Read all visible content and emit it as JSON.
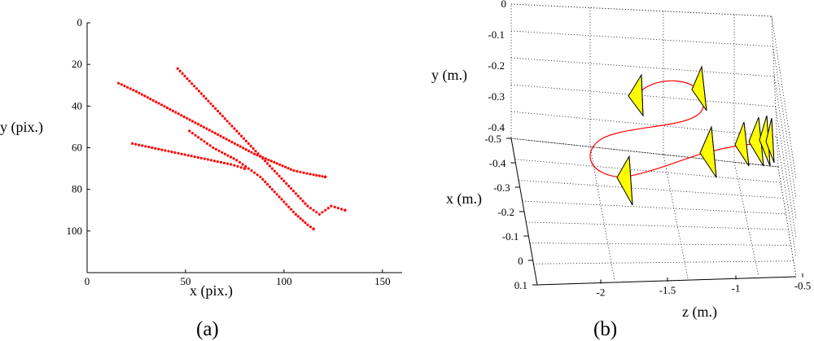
{
  "chart_data": [
    {
      "type": "scatter",
      "xlabel": "x (pix.)",
      "ylabel": "y (pix.)",
      "caption": "(a)",
      "xlim": [
        0,
        160
      ],
      "ylim": [
        0,
        120
      ],
      "y_reversed": true,
      "xticks": [
        0,
        50,
        100,
        150
      ],
      "yticks": [
        0,
        20,
        40,
        60,
        80,
        100
      ],
      "grid": false,
      "marker_color": "#ff0000",
      "series": [
        {
          "values": [
            [
              16,
              29
            ],
            [
              25,
              33
            ],
            [
              35,
              38
            ],
            [
              45,
              43
            ],
            [
              55,
              48
            ],
            [
              65,
              53
            ],
            [
              75,
              58
            ],
            [
              85,
              63
            ],
            [
              95,
              67
            ],
            [
              105,
              71
            ],
            [
              115,
              73
            ],
            [
              121,
              74
            ]
          ]
        },
        {
          "values": [
            [
              46,
              22
            ],
            [
              52,
              28
            ],
            [
              58,
              34
            ],
            [
              64,
              40
            ],
            [
              70,
              46
            ],
            [
              76,
              52
            ],
            [
              82,
              58
            ],
            [
              88,
              64
            ],
            [
              94,
              70
            ],
            [
              100,
              76
            ],
            [
              106,
              82
            ],
            [
              112,
              88
            ],
            [
              118,
              92
            ],
            [
              124,
              88
            ],
            [
              131,
              90
            ]
          ]
        },
        {
          "values": [
            [
              23,
              58
            ],
            [
              33,
              60
            ],
            [
              43,
              62
            ],
            [
              53,
              64
            ],
            [
              63,
              66
            ],
            [
              73,
              68
            ],
            [
              80,
              70
            ]
          ]
        },
        {
          "values": [
            [
              52,
              52
            ],
            [
              58,
              56
            ],
            [
              64,
              60
            ],
            [
              70,
              63
            ],
            [
              76,
              66
            ],
            [
              82,
              70
            ],
            [
              88,
              74
            ],
            [
              94,
              80
            ],
            [
              100,
              86
            ],
            [
              106,
              92
            ],
            [
              112,
              97
            ],
            [
              115,
              99
            ]
          ]
        }
      ]
    },
    {
      "type": "line",
      "xlabel": "x (m.)",
      "ylabel": "y (m.)",
      "zlabel": "z (m.)",
      "caption": "(b)",
      "grid": true,
      "line_color": "#ff0000",
      "marker_color": "#ffff00",
      "yticks": [
        "0",
        "-0.1",
        "-0.2",
        "-0.3",
        "-0.4"
      ],
      "xticks": [
        "-0.5",
        "-0.4",
        "-0.3",
        "-0.2",
        "-0.1",
        "0",
        "0.1"
      ],
      "zticks": [
        "-2",
        "-1.5",
        "-1",
        "-0.5"
      ]
    }
  ]
}
